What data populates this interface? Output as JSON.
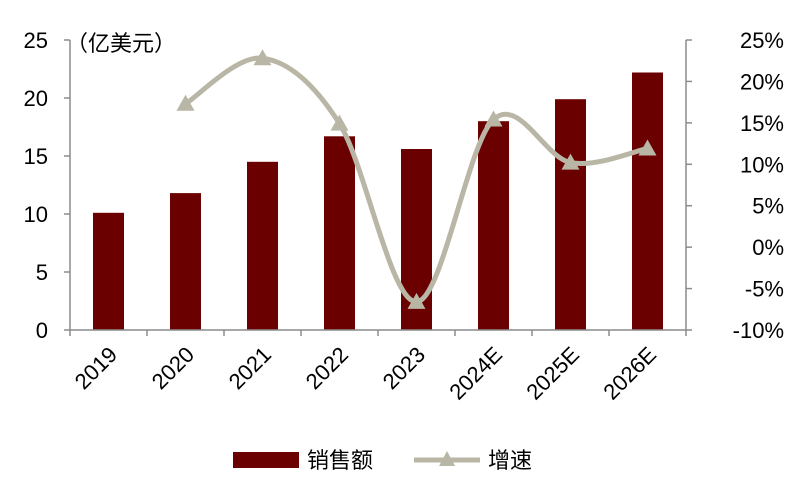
{
  "chart_data": {
    "type": "bar+line",
    "unit_label": "（亿美元）",
    "categories": [
      "2019",
      "2020",
      "2021",
      "2022",
      "2023",
      "2024E",
      "2025E",
      "2026E"
    ],
    "series": [
      {
        "name": "销售额",
        "type": "bar",
        "axis": "left",
        "color": "#6b0000",
        "values": [
          10.1,
          11.8,
          14.5,
          16.7,
          15.6,
          18.0,
          19.9,
          22.2
        ]
      },
      {
        "name": "增速",
        "type": "line",
        "axis": "right",
        "color": "#b9b6a6",
        "marker": "triangle",
        "values": [
          null,
          17.3,
          22.8,
          14.9,
          -6.6,
          15.4,
          10.2,
          11.9
        ]
      }
    ],
    "y_left": {
      "min": 0,
      "max": 25,
      "ticks": [
        0,
        5,
        10,
        15,
        20,
        25
      ]
    },
    "y_right": {
      "min": -10,
      "max": 25,
      "ticks": [
        "-10%",
        "-5%",
        "0%",
        "5%",
        "10%",
        "15%",
        "20%",
        "25%"
      ]
    },
    "grid": false,
    "legend": "bottom-center"
  }
}
